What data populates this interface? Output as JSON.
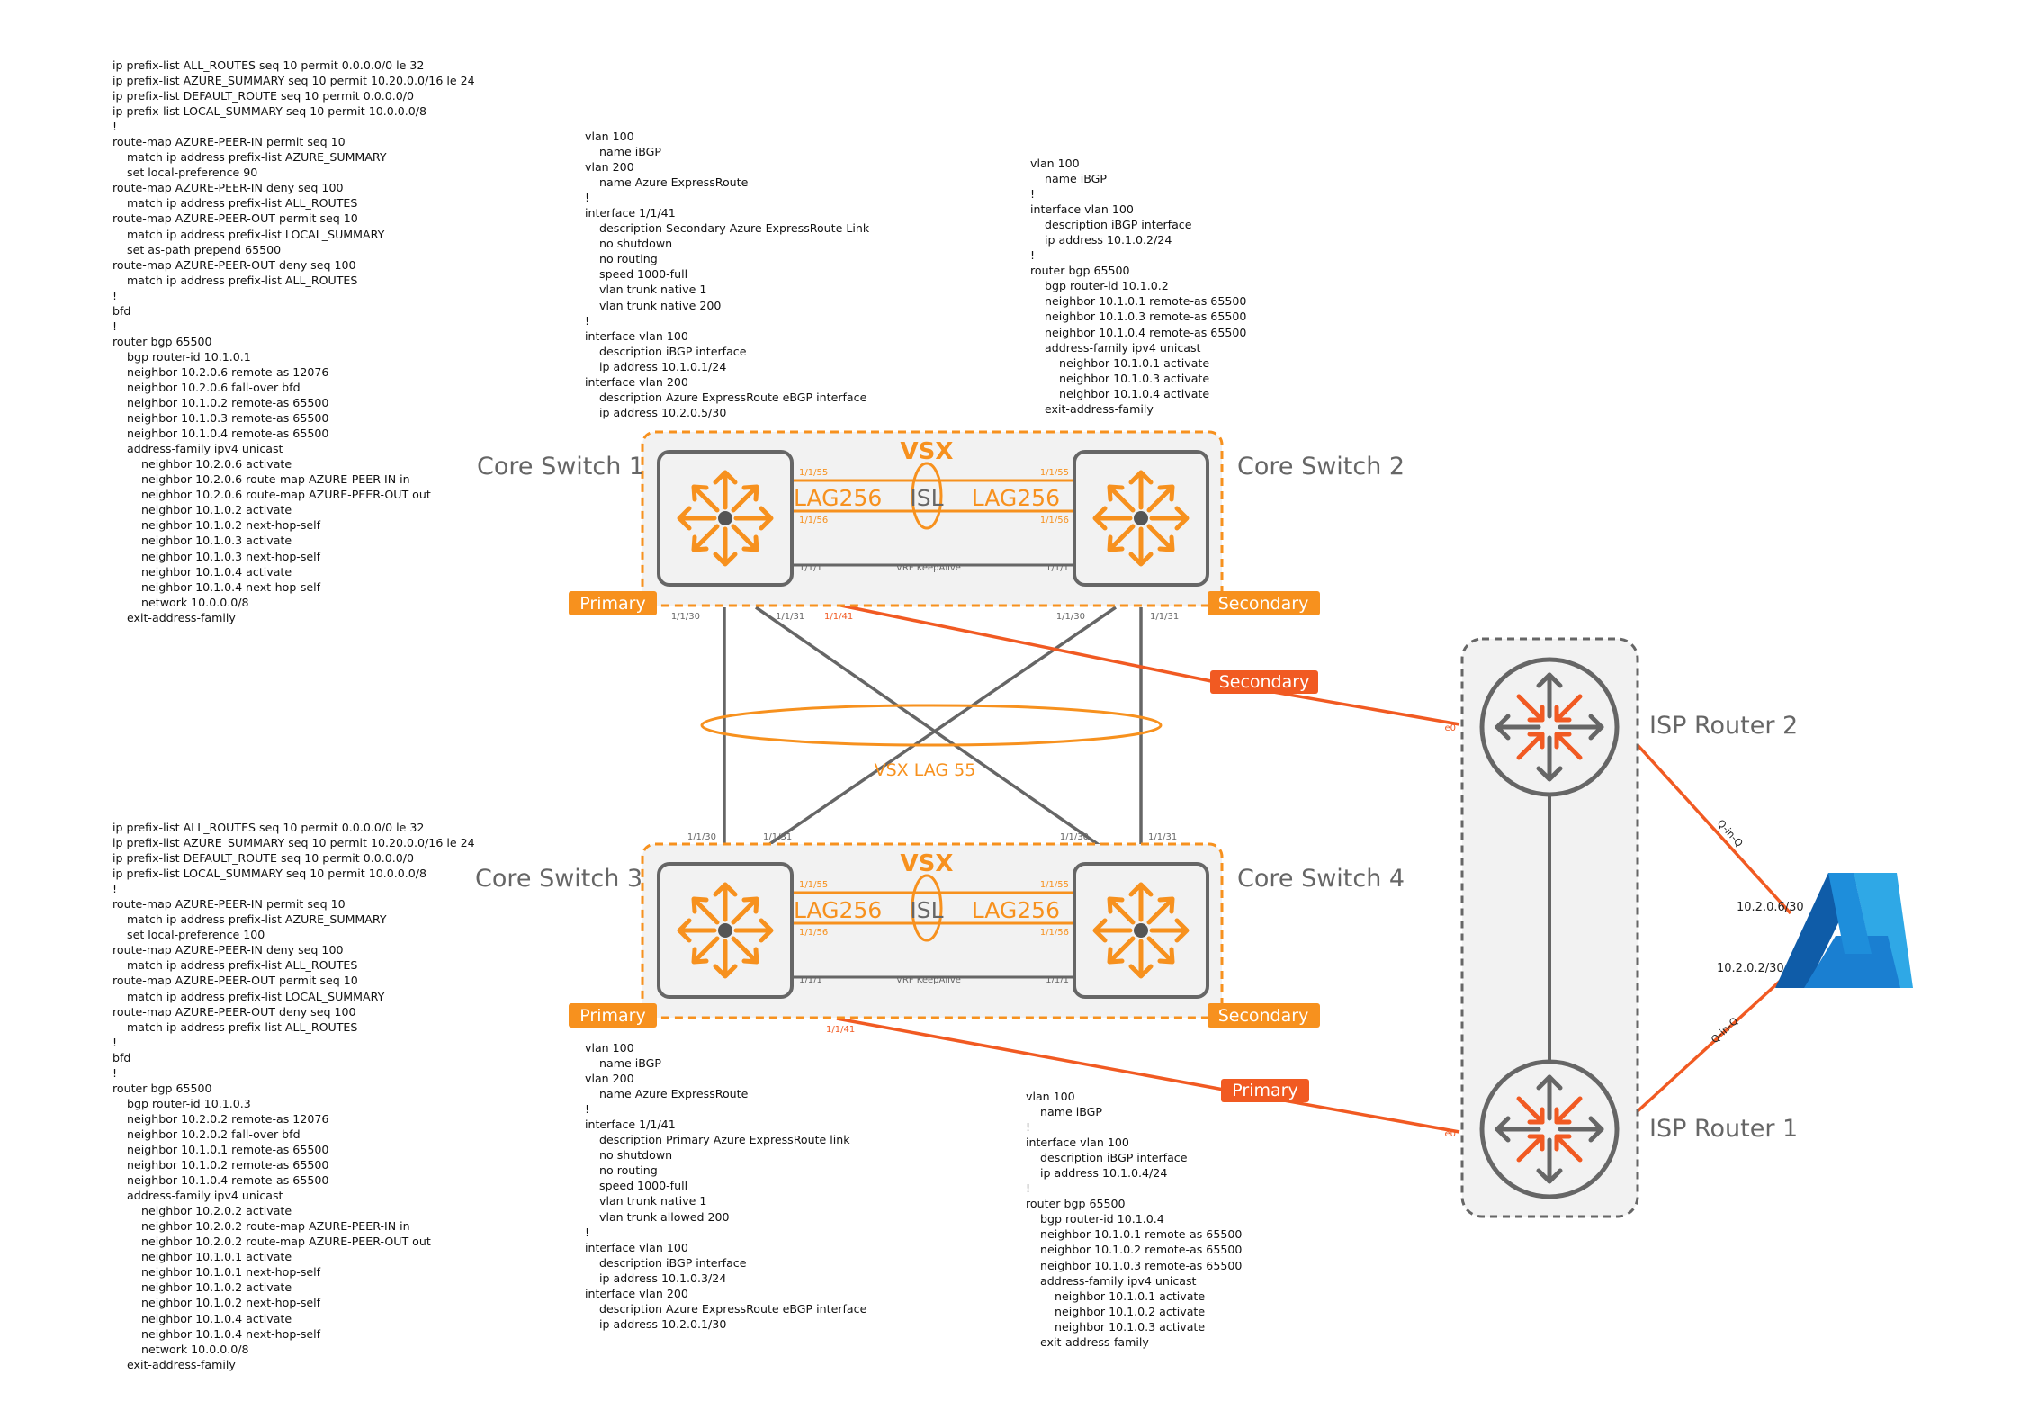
{
  "colors": {
    "orange": "#F7911E",
    "isp_orange": "#F15A22",
    "gray": "#666666",
    "panel_fill": "#F2F2F2",
    "azure_blue": "#0078D4"
  },
  "icons": {
    "switch": "aruba-switch-icon",
    "router": "router-icon",
    "cloud": "azure-logo-icon"
  },
  "devices": {
    "core1": "Core Switch 1",
    "core2": "Core Switch 2",
    "core3": "Core Switch 3",
    "core4": "Core Switch 4",
    "isp1": "ISP Router 1",
    "isp2": "ISP Router 2"
  },
  "vsx": {
    "top_label": "VSX",
    "bottom_label": "VSX",
    "lag_label": "LAG256",
    "isl_label": "ISL",
    "keepalive_label": "VRF KeepAlive",
    "lag55_label": "VSX LAG 55"
  },
  "roles": {
    "primary": "Primary",
    "secondary": "Secondary"
  },
  "ports": {
    "p155": "1/1/55",
    "p156": "1/1/56",
    "p11": "1/1/1",
    "p130": "1/1/30",
    "p131": "1/1/31",
    "p141": "1/1/41",
    "e0": "e0"
  },
  "links": {
    "qinq": "Q-in-Q",
    "azure_ip_top": "10.2.0.6/30",
    "azure_ip_bottom": "10.2.0.2/30"
  },
  "configs": {
    "core1_routing": [
      "ip prefix-list ALL_ROUTES seq 10 permit 0.0.0.0/0 le 32",
      "ip prefix-list AZURE_SUMMARY seq 10 permit 10.20.0.0/16 le 24",
      "ip prefix-list DEFAULT_ROUTE seq 10 permit 0.0.0.0/0",
      "ip prefix-list LOCAL_SUMMARY seq 10 permit 10.0.0.0/8",
      "!",
      "route-map AZURE-PEER-IN permit seq 10",
      "    match ip address prefix-list AZURE_SUMMARY",
      "    set local-preference 90",
      "route-map AZURE-PEER-IN deny seq 100",
      "    match ip address prefix-list ALL_ROUTES",
      "route-map AZURE-PEER-OUT permit seq 10",
      "    match ip address prefix-list LOCAL_SUMMARY",
      "    set as-path prepend 65500",
      "route-map AZURE-PEER-OUT deny seq 100",
      "    match ip address prefix-list ALL_ROUTES",
      "!",
      "bfd",
      "!",
      "router bgp 65500",
      "    bgp router-id 10.1.0.1",
      "    neighbor 10.2.0.6 remote-as 12076",
      "    neighbor 10.2.0.6 fall-over bfd",
      "    neighbor 10.1.0.2 remote-as 65500",
      "    neighbor 10.1.0.3 remote-as 65500",
      "    neighbor 10.1.0.4 remote-as 65500",
      "    address-family ipv4 unicast",
      "        neighbor 10.2.0.6 activate",
      "        neighbor 10.2.0.6 route-map AZURE-PEER-IN in",
      "        neighbor 10.2.0.6 route-map AZURE-PEER-OUT out",
      "        neighbor 10.1.0.2 activate",
      "        neighbor 10.1.0.2 next-hop-self",
      "        neighbor 10.1.0.3 activate",
      "        neighbor 10.1.0.3 next-hop-self",
      "        neighbor 10.1.0.4 activate",
      "        neighbor 10.1.0.4 next-hop-self",
      "        network 10.0.0.0/8",
      "    exit-address-family"
    ],
    "core1_interfaces": [
      "vlan 100",
      "    name iBGP",
      "vlan 200",
      "    name Azure ExpressRoute",
      "!",
      "interface 1/1/41",
      "    description Secondary Azure ExpressRoute Link",
      "    no shutdown",
      "    no routing",
      "    speed 1000-full",
      "    vlan trunk native 1",
      "    vlan trunk native 200",
      "!",
      "interface vlan 100",
      "    description iBGP interface",
      "    ip address 10.1.0.1/24",
      "interface vlan 200",
      "    description Azure ExpressRoute eBGP interface",
      "    ip address 10.2.0.5/30"
    ],
    "core2": [
      "vlan 100",
      "    name iBGP",
      "!",
      "interface vlan 100",
      "    description iBGP interface",
      "    ip address 10.1.0.2/24",
      "!",
      "router bgp 65500",
      "    bgp router-id 10.1.0.2",
      "    neighbor 10.1.0.1 remote-as 65500",
      "    neighbor 10.1.0.3 remote-as 65500",
      "    neighbor 10.1.0.4 remote-as 65500",
      "    address-family ipv4 unicast",
      "        neighbor 10.1.0.1 activate",
      "        neighbor 10.1.0.3 activate",
      "        neighbor 10.1.0.4 activate",
      "    exit-address-family"
    ],
    "core3_routing": [
      "ip prefix-list ALL_ROUTES seq 10 permit 0.0.0.0/0 le 32",
      "ip prefix-list AZURE_SUMMARY seq 10 permit 10.20.0.0/16 le 24",
      "ip prefix-list DEFAULT_ROUTE seq 10 permit 0.0.0.0/0",
      "ip prefix-list LOCAL_SUMMARY seq 10 permit 10.0.0.0/8",
      "!",
      "route-map AZURE-PEER-IN permit seq 10",
      "    match ip address prefix-list AZURE_SUMMARY",
      "    set local-preference 100",
      "route-map AZURE-PEER-IN deny seq 100",
      "    match ip address prefix-list ALL_ROUTES",
      "route-map AZURE-PEER-OUT permit seq 10",
      "    match ip address prefix-list LOCAL_SUMMARY",
      "route-map AZURE-PEER-OUT deny seq 100",
      "    match ip address prefix-list ALL_ROUTES",
      "!",
      "bfd",
      "!",
      "router bgp 65500",
      "    bgp router-id 10.1.0.3",
      "    neighbor 10.2.0.2 remote-as 12076",
      "    neighbor 10.2.0.2 fall-over bfd",
      "    neighbor 10.1.0.1 remote-as 65500",
      "    neighbor 10.1.0.2 remote-as 65500",
      "    neighbor 10.1.0.4 remote-as 65500",
      "    address-family ipv4 unicast",
      "        neighbor 10.2.0.2 activate",
      "        neighbor 10.2.0.2 route-map AZURE-PEER-IN in",
      "        neighbor 10.2.0.2 route-map AZURE-PEER-OUT out",
      "        neighbor 10.1.0.1 activate",
      "        neighbor 10.1.0.1 next-hop-self",
      "        neighbor 10.1.0.2 activate",
      "        neighbor 10.1.0.2 next-hop-self",
      "        neighbor 10.1.0.4 activate",
      "        neighbor 10.1.0.4 next-hop-self",
      "        network 10.0.0.0/8",
      "    exit-address-family"
    ],
    "core3_interfaces": [
      "vlan 100",
      "    name iBGP",
      "vlan 200",
      "    name Azure ExpressRoute",
      "!",
      "interface 1/1/41",
      "    description Primary Azure ExpressRoute link",
      "    no shutdown",
      "    no routing",
      "    speed 1000-full",
      "    vlan trunk native 1",
      "    vlan trunk allowed 200",
      "!",
      "interface vlan 100",
      "    description iBGP interface",
      "    ip address 10.1.0.3/24",
      "interface vlan 200",
      "    description Azure ExpressRoute eBGP interface",
      "    ip address 10.2.0.1/30"
    ],
    "core4": [
      "vlan 100",
      "    name iBGP",
      "!",
      "interface vlan 100",
      "    description iBGP interface",
      "    ip address 10.1.0.4/24",
      "!",
      "router bgp 65500",
      "    bgp router-id 10.1.0.4",
      "    neighbor 10.1.0.1 remote-as 65500",
      "    neighbor 10.1.0.2 remote-as 65500",
      "    neighbor 10.1.0.3 remote-as 65500",
      "    address-family ipv4 unicast",
      "        neighbor 10.1.0.1 activate",
      "        neighbor 10.1.0.2 activate",
      "        neighbor 10.1.0.3 activate",
      "    exit-address-family"
    ]
  }
}
